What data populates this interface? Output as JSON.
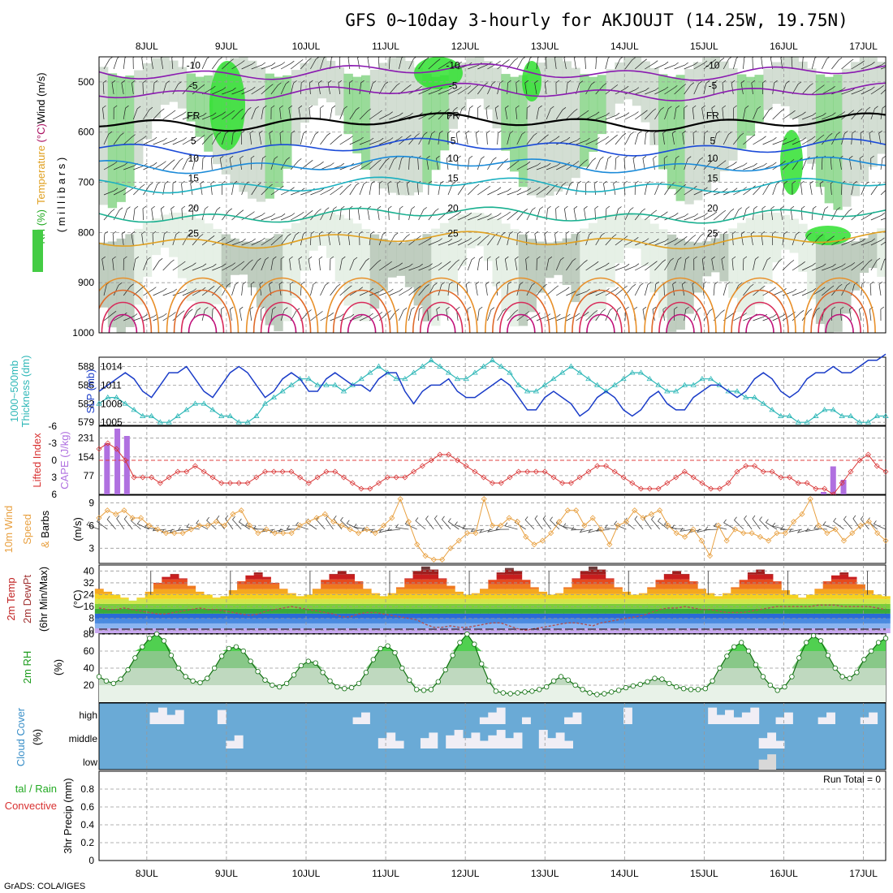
{
  "chart_data": {
    "type": "meteogram",
    "title": "GFS 0~10day 3-hourly for AKJOUJT (14.25W, 19.75N)",
    "dates": [
      "8JUL",
      "9JUL",
      "10JUL",
      "11JUL",
      "12JUL",
      "13JUL",
      "14JUL",
      "15JUL",
      "16JUL",
      "17JUL"
    ],
    "x_range": [
      -0.6,
      9.28
    ],
    "pressure_ticks": [
      500,
      600,
      700,
      800,
      900,
      1000
    ],
    "pressure_range": [
      450,
      1000
    ],
    "isotherms": [
      {
        "label": "-10",
        "level": 480
      },
      {
        "label": "-5",
        "level": 520
      },
      {
        "label": "FR",
        "level": 580
      },
      {
        "label": "5",
        "level": 630
      },
      {
        "label": "10",
        "level": 665
      },
      {
        "label": "15",
        "level": 705
      },
      {
        "label": "20",
        "level": 765
      },
      {
        "label": "25",
        "level": 815
      }
    ],
    "slp": {
      "left_ticks": [
        579,
        582,
        585,
        588
      ],
      "right_ticks": [
        1005,
        1008,
        1011,
        1014
      ],
      "slp_range": [
        1004.5,
        1015.5
      ],
      "slp_values": [
        1010,
        1011,
        1012,
        1013,
        1012,
        1010,
        1009,
        1011,
        1013,
        1013,
        1014,
        1012,
        1010,
        1009,
        1011,
        1013,
        1014,
        1013,
        1011,
        1009,
        1010,
        1012,
        1013,
        1012,
        1010,
        1010,
        1012,
        1013,
        1012,
        1011,
        1011,
        1010,
        1012,
        1013,
        1013,
        1010,
        1008,
        1010,
        1011,
        1011,
        1012,
        1010,
        1009,
        1009,
        1010,
        1011,
        1012,
        1011,
        1009,
        1007,
        1007,
        1009,
        1010,
        1009,
        1008,
        1006,
        1007,
        1009,
        1010,
        1009,
        1007,
        1006,
        1007,
        1009,
        1010,
        1008,
        1007,
        1007,
        1009,
        1010,
        1011,
        1011,
        1010,
        1009,
        1010,
        1012,
        1013,
        1012,
        1010,
        1009,
        1010,
        1012,
        1013,
        1013,
        1014,
        1013,
        1013,
        1014,
        1015,
        1015,
        1016
      ],
      "thk_values": [
        1008,
        1009,
        1009,
        1008,
        1007,
        1006,
        1006,
        1005,
        1005,
        1006,
        1007,
        1008,
        1008,
        1007,
        1006,
        1006,
        1005,
        1005,
        1006,
        1008,
        1009,
        1010,
        1011,
        1012,
        1012,
        1011,
        1011,
        1011,
        1010,
        1011,
        1012,
        1013,
        1014,
        1013,
        1012,
        1012,
        1013,
        1014,
        1015,
        1014,
        1013,
        1012,
        1012,
        1013,
        1014,
        1015,
        1014,
        1013,
        1011,
        1010,
        1010,
        1011,
        1012,
        1013,
        1014,
        1013,
        1012,
        1011,
        1010,
        1011,
        1012,
        1013,
        1013,
        1012,
        1011,
        1010,
        1010,
        1011,
        1011,
        1012,
        1012,
        1011,
        1010,
        1010,
        1009,
        1009,
        1008,
        1007,
        1006,
        1006,
        1005,
        1005,
        1006,
        1007,
        1007,
        1006,
        1006,
        1005,
        1005,
        1006,
        1006
      ]
    },
    "cape_li": {
      "li_ticks": [
        -6,
        -3,
        0,
        3,
        6
      ],
      "cape_ticks": [
        77,
        154,
        231
      ],
      "li_range": [
        -6,
        6
      ],
      "cape_range": [
        0,
        280
      ],
      "li_values": [
        -2,
        -3,
        -2,
        0,
        3,
        3,
        3,
        4,
        3,
        2,
        2,
        1,
        2,
        3,
        4,
        4,
        4,
        4,
        3,
        2,
        2,
        2,
        2,
        3,
        4,
        3,
        2,
        2,
        3,
        4,
        5,
        5,
        4,
        3,
        3,
        3,
        2,
        1,
        0,
        -1,
        -1,
        0,
        1,
        2,
        3,
        4,
        4,
        3,
        2,
        2,
        2,
        2,
        3,
        4,
        4,
        3,
        2,
        1,
        1,
        2,
        3,
        4,
        5,
        5,
        5,
        4,
        3,
        2,
        3,
        4,
        5,
        5,
        4,
        2,
        1,
        1,
        2,
        2,
        3,
        3,
        4,
        4,
        5,
        5,
        6,
        4,
        2,
        0,
        -1,
        1,
        2
      ],
      "cape_bars": [
        {
          "x": -0.5,
          "v": 210
        },
        {
          "x": -0.37,
          "v": 270
        },
        {
          "x": -0.25,
          "v": 240
        },
        {
          "x": 8.5,
          "v": 10
        },
        {
          "x": 8.62,
          "v": 115
        },
        {
          "x": 8.75,
          "v": 60
        }
      ]
    },
    "wind10m": {
      "ticks": [
        3,
        6,
        9
      ],
      "range": [
        1,
        10
      ],
      "values": [
        7,
        8,
        7.5,
        8,
        7,
        7,
        6,
        5.5,
        5,
        5,
        5,
        5.5,
        6,
        6,
        6.5,
        6,
        7.5,
        8,
        6,
        5,
        5.5,
        5,
        5,
        5,
        6,
        6.5,
        7,
        7.5,
        6.5,
        6,
        5.5,
        5,
        5.5,
        5,
        6,
        7,
        9.5,
        6.5,
        3.5,
        2,
        1.5,
        1.5,
        3,
        4,
        5,
        5,
        9.5,
        6,
        6,
        7,
        6.5,
        4.5,
        3.5,
        4,
        5,
        6.5,
        8,
        8,
        6,
        7,
        5.5,
        3.5,
        6,
        6.5,
        8,
        7,
        7.5,
        8,
        6,
        5,
        4.5,
        5.5,
        4,
        2,
        6,
        4,
        5.5,
        5,
        5,
        4.5,
        4,
        5,
        5,
        6.5,
        7.5,
        9.5,
        6,
        5,
        5.5,
        4,
        5,
        6,
        6.5,
        5,
        4
      ]
    },
    "temp": {
      "ticks": [
        0,
        8,
        16,
        24,
        32,
        40
      ],
      "range": [
        -2,
        44
      ],
      "band_colors": [
        "#c8a8f0",
        "#8ab4f0",
        "#4a8ae0",
        "#2a6ad8",
        "#3aaa3a",
        "#7acd3a",
        "#d2e64a",
        "#f5d21e",
        "#f5a81e",
        "#ef781e",
        "#e64a1e",
        "#c81e1e",
        "#a01e1e",
        "#6a3a3a"
      ],
      "values": [
        28,
        26,
        24,
        22,
        20,
        22,
        26,
        32,
        36,
        38,
        35,
        30,
        26,
        24,
        22,
        23,
        27,
        33,
        37,
        39,
        36,
        32,
        28,
        25,
        23,
        24,
        28,
        34,
        38,
        40,
        38,
        33,
        28,
        25,
        23,
        25,
        29,
        35,
        40,
        43,
        41,
        35,
        30,
        26,
        24,
        25,
        28,
        34,
        39,
        42,
        40,
        34,
        29,
        26,
        24,
        25,
        29,
        35,
        40,
        43,
        41,
        35,
        29,
        26,
        24,
        25,
        29,
        34,
        38,
        40,
        38,
        33,
        28,
        25,
        23,
        25,
        29,
        34,
        39,
        41,
        38,
        33,
        27,
        24,
        22,
        24,
        28,
        33,
        37,
        39,
        36,
        31,
        27,
        24,
        23
      ],
      "dew_values": [
        15,
        14,
        14,
        15,
        14,
        13,
        12,
        11,
        11,
        12,
        13,
        14,
        15,
        14,
        14,
        13,
        12,
        11,
        10,
        11,
        13,
        14,
        15,
        16,
        15,
        14,
        13,
        12,
        11,
        9,
        9,
        11,
        12,
        12,
        11,
        10,
        9,
        8,
        7,
        4,
        2,
        2,
        3,
        2,
        2,
        3,
        4,
        5,
        5,
        3,
        1,
        0,
        1,
        2,
        3,
        4,
        5,
        5,
        4,
        3,
        5,
        6,
        7,
        8,
        9,
        10,
        12,
        14,
        15,
        15,
        16,
        15,
        14,
        14,
        13,
        12,
        12,
        12,
        13,
        14,
        15,
        16,
        16,
        16,
        16,
        16,
        17,
        17,
        17,
        16,
        16,
        16,
        16,
        15,
        14
      ]
    },
    "rh2m": {
      "ticks": [
        20,
        40,
        60,
        80
      ],
      "range": [
        0,
        80
      ],
      "values": [
        30,
        25,
        22,
        27,
        38,
        52,
        65,
        75,
        80,
        72,
        55,
        40,
        30,
        25,
        23,
        28,
        40,
        54,
        63,
        65,
        60,
        48,
        36,
        26,
        20,
        18,
        22,
        32,
        43,
        48,
        46,
        35,
        25,
        18,
        16,
        17,
        22,
        35,
        50,
        63,
        66,
        58,
        40,
        26,
        15,
        14,
        15,
        24,
        38,
        55,
        70,
        80,
        68,
        45,
        25,
        13,
        11,
        10,
        11,
        12,
        13,
        15,
        18,
        25,
        30,
        26,
        20,
        15,
        11,
        9,
        10,
        12,
        14,
        17,
        19,
        21,
        24,
        28,
        27,
        22,
        18,
        16,
        15,
        15,
        16,
        25,
        40,
        54,
        65,
        70,
        60,
        44,
        30,
        20,
        14,
        18,
        30,
        52,
        70,
        78,
        72,
        55,
        40,
        30,
        28,
        35,
        50,
        60,
        70,
        75
      ]
    },
    "cloud": {
      "levels": [
        "high",
        "middle",
        "low"
      ]
    },
    "precip": {
      "ticks": [
        0,
        0.2,
        0.4,
        0.6,
        0.8
      ],
      "range": [
        0,
        1
      ]
    }
  },
  "panels": {
    "upper": {
      "axis_label": "( m i l l i b a r s )",
      "rh_label": "RH (%)",
      "temp_label": "Temperature",
      "temp_unit": " (°C)",
      "wind_label": "Wind (m/s)"
    },
    "slp": {
      "thk_label1": "1000~500mb",
      "thk_label2": "Thickness (dm)",
      "slp_label": "SLP (mb)"
    },
    "cape": {
      "li_label": "Lifted Index",
      "cape_label": "CAPE (J/kg)"
    },
    "wind": {
      "label1": "10m Wind",
      "label2": "Speed",
      "label3a": "& ",
      "label3b": "Barbs",
      "unit": "(m/s)"
    },
    "temp": {
      "label1": "2m Temp",
      "label2": "2m DewPt",
      "label3": "(6hr Min/Max)",
      "unit": "(°C)"
    },
    "rh": {
      "label": "2m RH",
      "unit": "(%)"
    },
    "cloud": {
      "label": "Cloud Cover",
      "unit": "(%)"
    },
    "precip": {
      "label1": "tal / Rain",
      "label2": "Convective",
      "unit": "3hr Precip (mm)",
      "run_total": "Run Total = 0"
    }
  },
  "footer": {
    "credit": "GrADS: COLA/IGES"
  }
}
